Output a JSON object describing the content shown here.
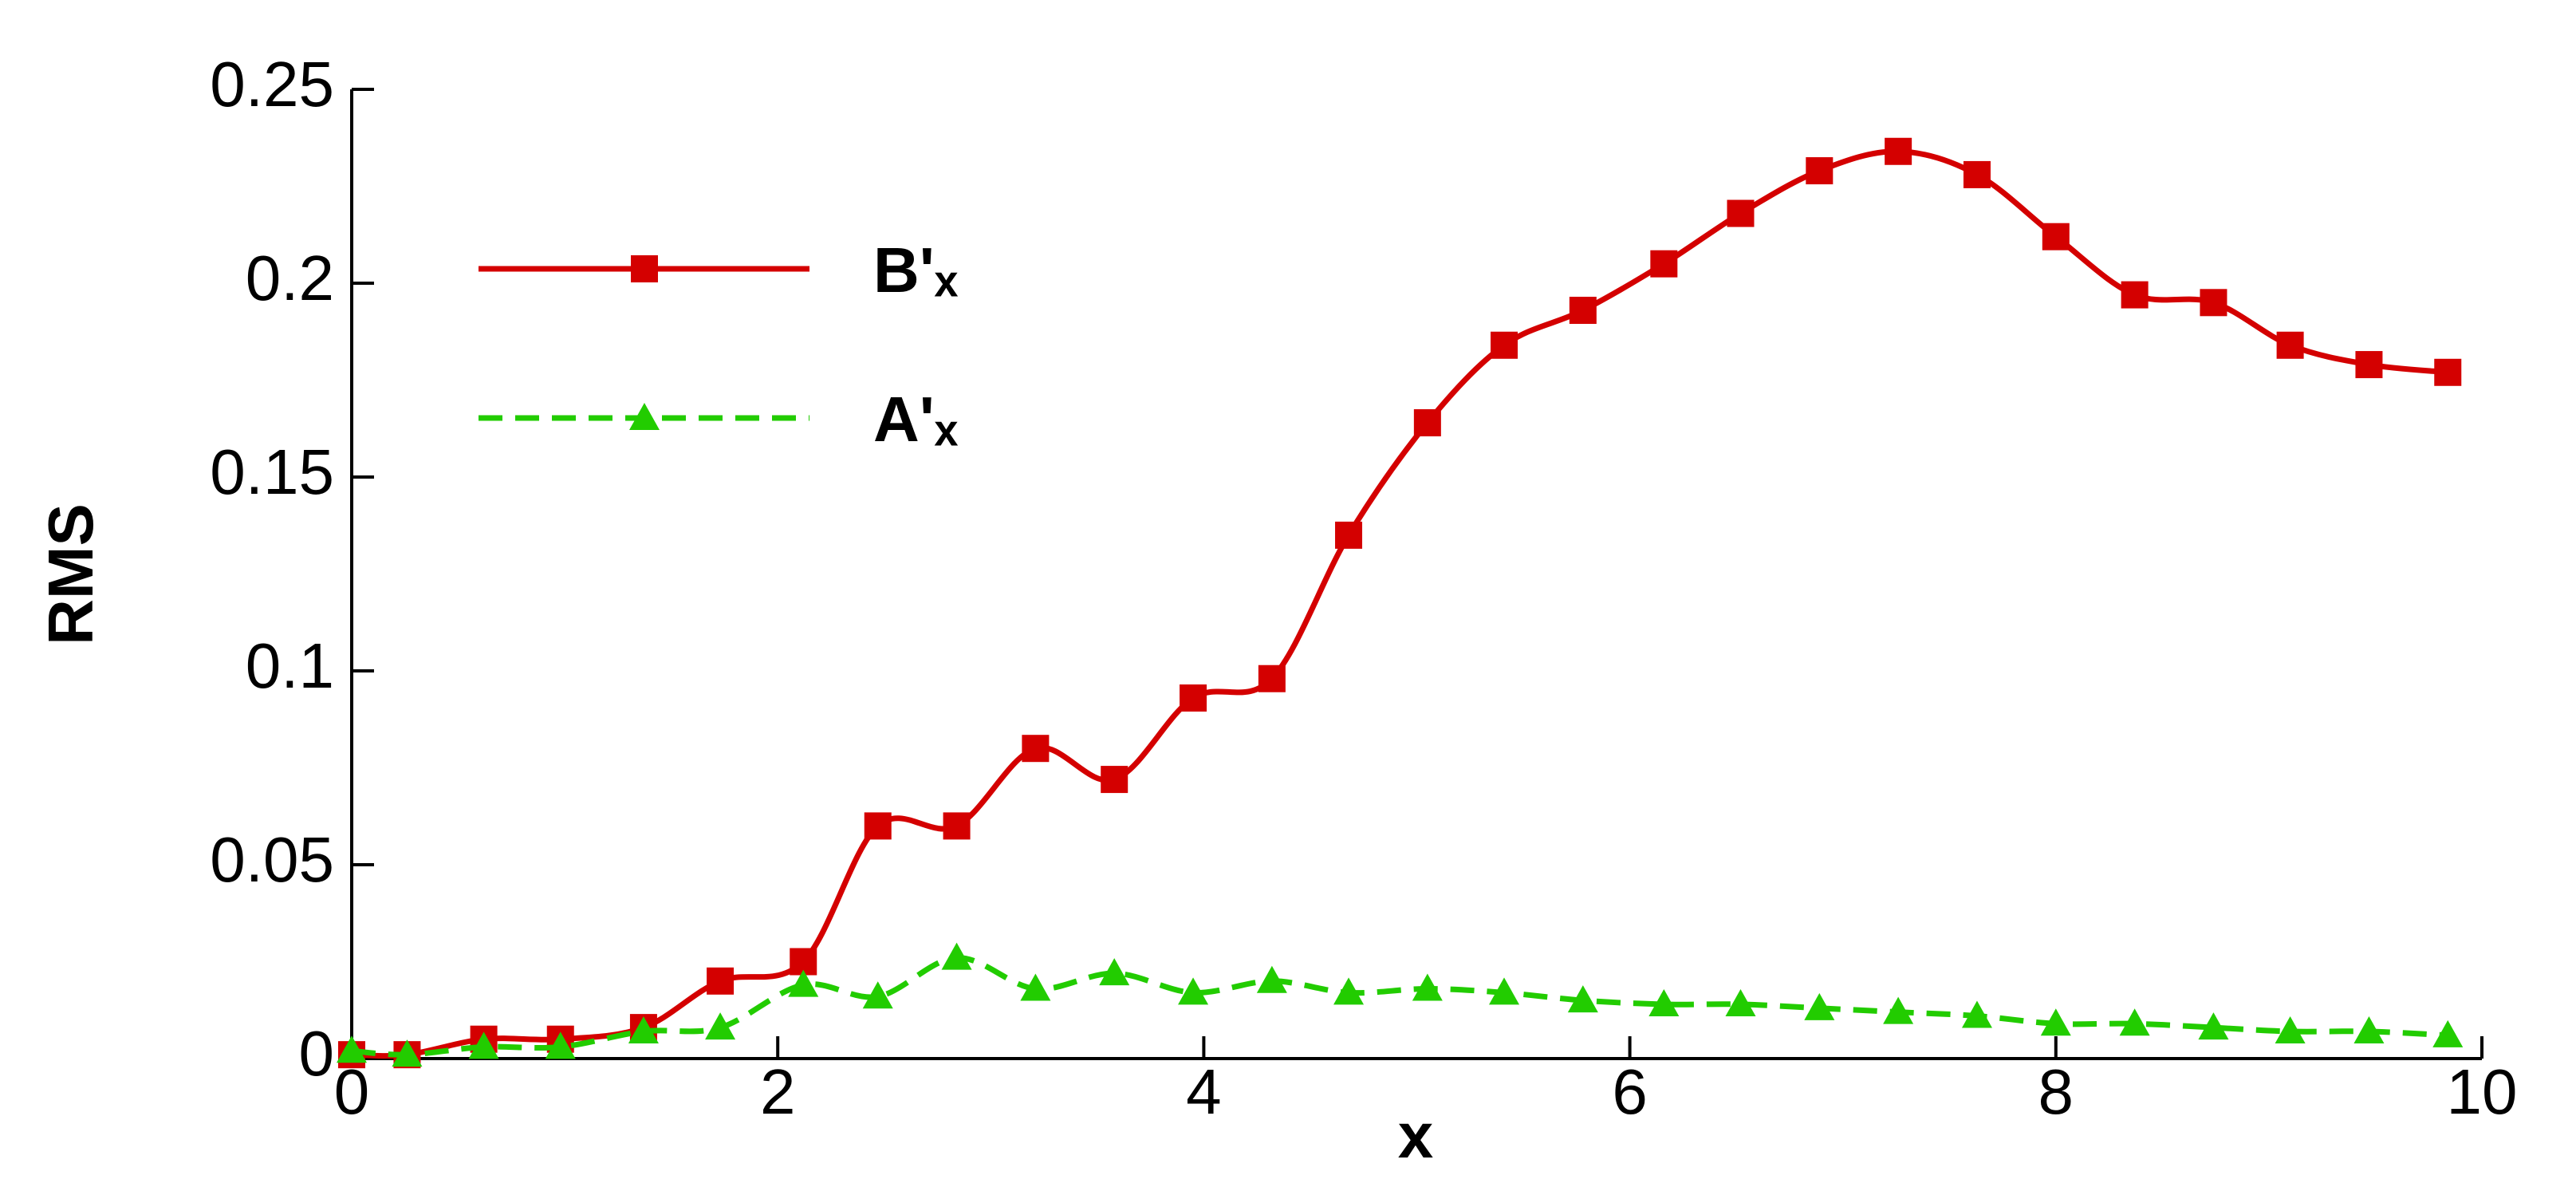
{
  "chart_data": {
    "type": "line",
    "xlabel": "x",
    "ylabel": "RMS",
    "xlim": [
      0,
      10
    ],
    "ylim": [
      0,
      0.25
    ],
    "xticks": [
      0,
      2,
      4,
      6,
      8,
      10
    ],
    "yticks": [
      0,
      0.05,
      0.1,
      0.15,
      0.2,
      0.25
    ],
    "legend": "upper left",
    "series": [
      {
        "name": "B'ₓ",
        "color": "#d40000",
        "marker": "square",
        "dash": "solid",
        "x": [
          0,
          0.26,
          0.62,
          0.98,
          1.37,
          1.73,
          2.12,
          2.47,
          2.84,
          3.21,
          3.58,
          3.95,
          4.32,
          4.68,
          5.05,
          5.41,
          5.78,
          6.16,
          6.52,
          6.89,
          7.26,
          7.63,
          8.0,
          8.37,
          8.74,
          9.1,
          9.47,
          9.84
        ],
        "values": [
          0.001,
          0.001,
          0.005,
          0.005,
          0.008,
          0.02,
          0.025,
          0.06,
          0.06,
          0.08,
          0.072,
          0.093,
          0.098,
          0.135,
          0.164,
          0.184,
          0.193,
          0.205,
          0.218,
          0.229,
          0.234,
          0.228,
          0.212,
          0.197,
          0.195,
          0.184,
          0.179,
          0.177
        ]
      },
      {
        "name": "A'ₓ",
        "color": "#22cc00",
        "marker": "triangle",
        "dash": "dashed",
        "x": [
          0,
          0.26,
          0.62,
          0.98,
          1.37,
          1.73,
          2.12,
          2.47,
          2.84,
          3.21,
          3.58,
          3.95,
          4.32,
          4.68,
          5.05,
          5.41,
          5.78,
          6.16,
          6.52,
          6.89,
          7.26,
          7.63,
          8.0,
          8.37,
          8.74,
          9.1,
          9.47,
          9.84
        ],
        "values": [
          0.002,
          0.001,
          0.003,
          0.003,
          0.007,
          0.008,
          0.019,
          0.016,
          0.026,
          0.018,
          0.022,
          0.017,
          0.02,
          0.017,
          0.018,
          0.017,
          0.015,
          0.014,
          0.014,
          0.013,
          0.012,
          0.011,
          0.009,
          0.009,
          0.008,
          0.007,
          0.007,
          0.006
        ]
      }
    ]
  }
}
